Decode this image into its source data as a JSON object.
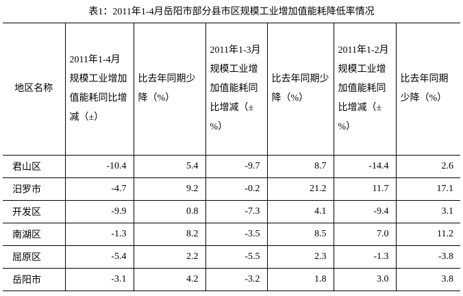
{
  "title": "表1：2011年1-4月岳阳市部分县市区规模工业增加值能耗降低率情况",
  "table": {
    "header": [
      "地区名称",
      "2011年1-4月规模工业增加值能耗同比增减（±）",
      "比去年同期少降（%）",
      "2011年1-3月规模工业增加值能耗同比增减（±%）",
      "比去年同期少降（%）",
      "2011年1-2月规模工业增加值能耗同比增减（±%）",
      "比去年同期少降（%）"
    ],
    "rows": [
      [
        "君山区",
        "-10.4",
        "5.4",
        "-9.7",
        "8.7",
        "-14.4",
        "2.6"
      ],
      [
        "汨罗市",
        "-4.7",
        "9.2",
        "-0.2",
        "21.2",
        "11.7",
        "17.1"
      ],
      [
        "开发区",
        "-9.9",
        "0.8",
        "-7.3",
        "4.1",
        "-9.4",
        "3.1"
      ],
      [
        "南湖区",
        "-1.3",
        "8.2",
        "-3.5",
        "8.5",
        "7.0",
        "11.2"
      ],
      [
        "屈原区",
        "-5.4",
        "2.2",
        "-5.5",
        "2.3",
        "-1.3",
        "-3.8"
      ],
      [
        "岳阳市",
        "-3.1",
        "4.2",
        "-3.2",
        "1.8",
        "3.0",
        "3.8"
      ]
    ]
  }
}
